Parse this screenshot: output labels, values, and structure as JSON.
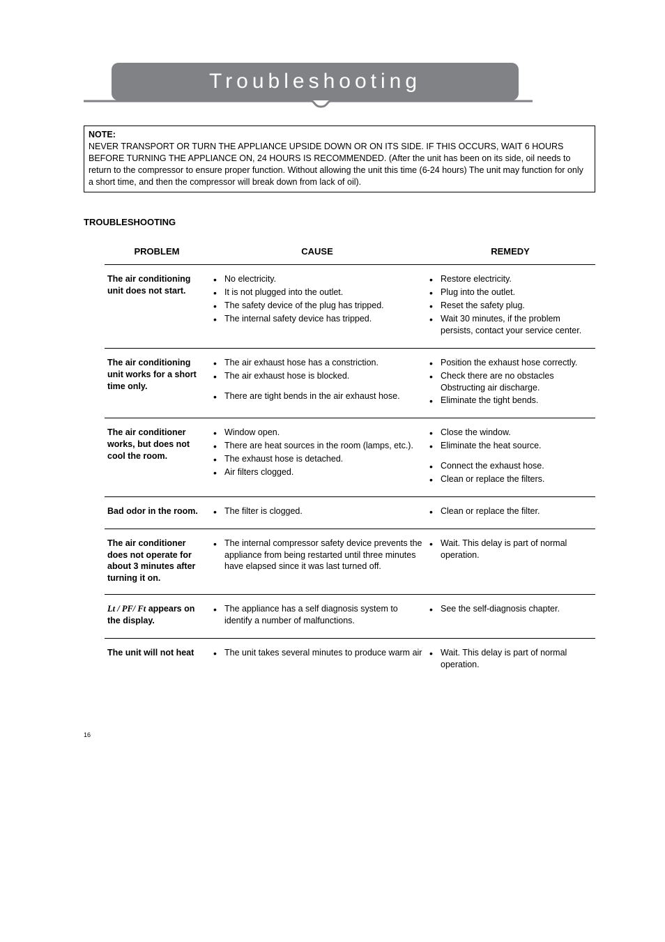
{
  "banner": {
    "title": "Troubleshooting",
    "title_color": "#ffffff",
    "banner_bg": "#808285",
    "underline_stroke": "#808285"
  },
  "note": {
    "label": "NOTE:",
    "body": "NEVER TRANSPORT OR TURN THE APPLIANCE UPSIDE DOWN OR ON ITS SIDE. IF THIS OCCURS, WAIT 6 HOURS BEFORE TURNING THE APPLIANCE ON, 24 HOURS IS RECOMMENDED. (After the unit has been on its side, oil needs to return to the compressor to ensure proper function.  Without allowing the unit this time (6-24 hours) The unit may function for only a short time, and then the compressor will break down from lack of oil)."
  },
  "section_heading": "TROUBLESHOOTING",
  "headers": {
    "problem": "PROBLEM",
    "cause": "CAUSE",
    "remedy": "REMEDY"
  },
  "rows": [
    {
      "problem": "The air conditioning unit does not start.",
      "causes": [
        "No electricity.",
        "It is not plugged into the outlet.",
        "The safety device of the plug has tripped.",
        "The internal safety device has tripped."
      ],
      "remedies": [
        "Restore electricity.",
        "Plug into the outlet.",
        "Reset the safety plug.",
        "Wait 30 minutes, if the problem persists, contact your service center."
      ]
    },
    {
      "problem": "The air conditioning unit works for a short time only.",
      "causes": [
        "The air exhaust hose has a constriction.",
        "The air exhaust hose is blocked.",
        "",
        "There are  tight bends in the air exhaust hose."
      ],
      "remedies": [
        "Position the exhaust hose correctly.",
        "Check there are no obstacles Obstructing air discharge.",
        "Eliminate the tight bends."
      ]
    },
    {
      "problem": "The air conditioner works, but does not cool the room.",
      "causes": [
        "Window open.",
        "There are heat sources in the room (lamps, etc.).",
        "The exhaust hose is detached.",
        "Air filters clogged."
      ],
      "remedies": [
        "Close the window.",
        "Eliminate the heat source.",
        "",
        "Connect the exhaust hose.",
        "Clean or replace the filters."
      ]
    },
    {
      "problem": "Bad odor in the room.",
      "causes": [
        "The filter is clogged."
      ],
      "remedies": [
        "Clean or replace the filter."
      ]
    },
    {
      "problem": "The air conditioner does not operate for about 3 minutes after turning it on.",
      "causes": [
        "The internal compressor safety device prevents the appliance from being restarted until three minutes have elapsed since it was last turned off."
      ],
      "remedies": [
        "Wait. This delay is part of normal operation."
      ]
    },
    {
      "problem_prefix_code": "Lt / PF/ Ft",
      "problem_suffix": "  appears on the display.",
      "causes": [
        "The appliance has a self diagnosis system to identify a number of malfunctions."
      ],
      "remedies": [
        "See the self-diagnosis chapter."
      ]
    },
    {
      "problem": "The unit will not heat",
      "causes": [
        "The unit takes several minutes to produce warm air"
      ],
      "remedies": [
        "Wait. This delay is part of normal operation."
      ]
    }
  ],
  "page_number": "16"
}
